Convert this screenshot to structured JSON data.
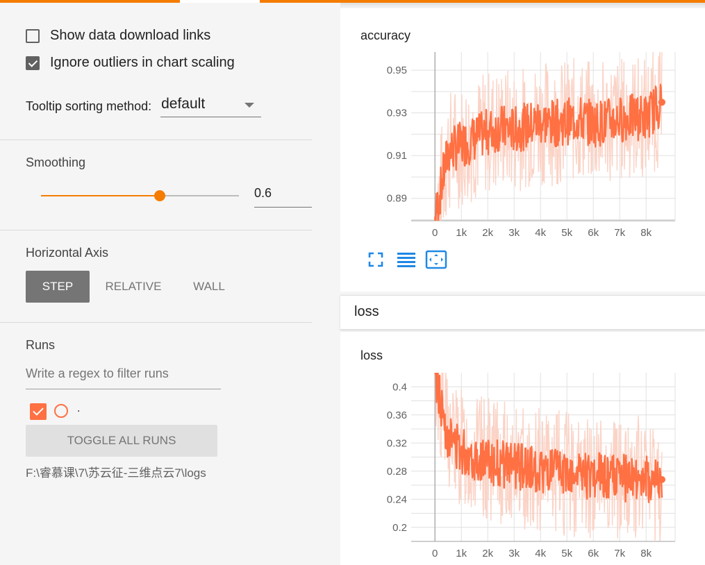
{
  "sidebar": {
    "show_download_links": {
      "label": "Show data download links",
      "checked": false
    },
    "ignore_outliers": {
      "label": "Ignore outliers in chart scaling",
      "checked": true
    },
    "tooltip_sorting": {
      "label": "Tooltip sorting method:",
      "value": "default"
    },
    "smoothing": {
      "title": "Smoothing",
      "value": "0.6",
      "level": 0.6
    },
    "horizontal_axis": {
      "title": "Horizontal Axis",
      "options": [
        "STEP",
        "RELATIVE",
        "WALL"
      ],
      "selected": "STEP"
    },
    "runs": {
      "title": "Runs",
      "filter_placeholder": "Write a regex to filter runs",
      "items": [
        {
          "name": ".",
          "checked": true
        }
      ],
      "toggle_all_label": "TOGGLE ALL RUNS",
      "logdir": "F:\\睿慕课\\7\\苏云征-三维点云7\\logs"
    }
  },
  "colors": {
    "accent": "#f57c00",
    "series": "#ff7043",
    "series_raw": "#fbd3c6",
    "icon_blue": "#1e88e5"
  },
  "main": {
    "accuracy_card": {
      "title": "accuracy",
      "icons": [
        "fit-to-screen-icon",
        "toggle-log-scale-icon",
        "fit-domain-icon"
      ]
    },
    "loss_group": {
      "title": "loss"
    },
    "loss_card": {
      "title": "loss"
    }
  },
  "chart_data": [
    {
      "type": "line",
      "title": "accuracy",
      "x_ticks": [
        "0",
        "1k",
        "2k",
        "3k",
        "4k",
        "5k",
        "6k",
        "7k",
        "8k"
      ],
      "y_ticks": [
        "0.89",
        "0.91",
        "0.93",
        "0.95"
      ],
      "xlim": [
        -900,
        9100
      ],
      "ylim": [
        0.8795,
        0.9585
      ],
      "series": [
        {
          "x": [
            0,
            500,
            1000,
            1500,
            2000,
            2500,
            3000,
            3500,
            4000,
            4500,
            5000,
            5500,
            6000,
            6500,
            7000,
            7500,
            8000,
            8600
          ],
          "smoothed": [
            0.88,
            0.912,
            0.915,
            0.918,
            0.921,
            0.923,
            0.922,
            0.924,
            0.926,
            0.925,
            0.926,
            0.927,
            0.925,
            0.926,
            0.927,
            0.928,
            0.928,
            0.935
          ]
        }
      ],
      "grid": true
    },
    {
      "type": "line",
      "title": "loss",
      "x_ticks": [
        "0",
        "1k",
        "2k",
        "3k",
        "4k",
        "5k",
        "6k",
        "7k",
        "8k"
      ],
      "y_ticks": [
        "0.2",
        "0.24",
        "0.28",
        "0.32",
        "0.36",
        "0.4"
      ],
      "xlim": [
        -900,
        9100
      ],
      "ylim": [
        0.18,
        0.42
      ],
      "series": [
        {
          "x": [
            0,
            250,
            500,
            1000,
            1500,
            2000,
            2500,
            3000,
            3500,
            4000,
            4500,
            5000,
            5500,
            6000,
            6500,
            7000,
            7500,
            8000,
            8600
          ],
          "smoothed": [
            0.42,
            0.37,
            0.33,
            0.31,
            0.3,
            0.295,
            0.29,
            0.288,
            0.285,
            0.28,
            0.278,
            0.276,
            0.275,
            0.273,
            0.272,
            0.27,
            0.27,
            0.268,
            0.268
          ]
        }
      ],
      "grid": true
    }
  ]
}
